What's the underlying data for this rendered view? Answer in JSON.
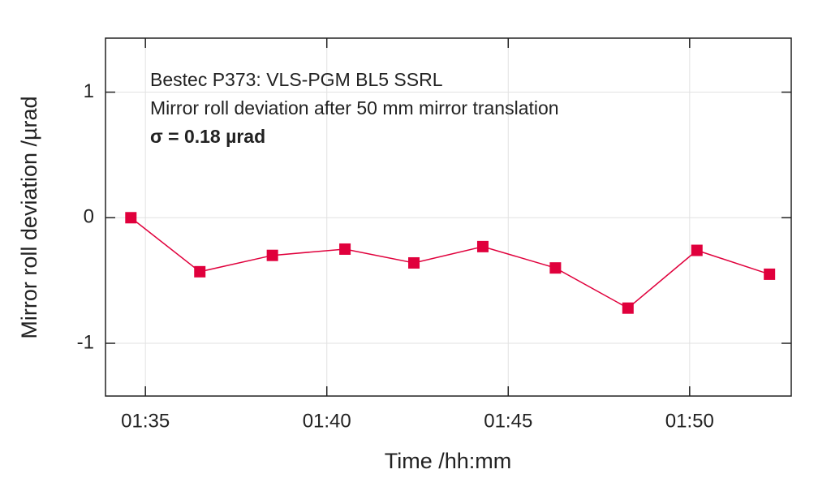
{
  "chart_data": {
    "type": "line",
    "xlabel": "Time /hh:mm",
    "ylabel": "Mirror roll deviation /µrad",
    "annotations": [
      "Bestec P373: VLS-PGM BL5 SSRL",
      "Mirror roll deviation after 50 mm mirror translation",
      "σ = 0.18 µrad"
    ],
    "x": [
      94.6,
      96.5,
      98.5,
      100.5,
      102.4,
      104.3,
      106.3,
      108.3,
      110.2,
      112.2
    ],
    "series": [
      {
        "color": "#e0003c",
        "values": [
          0,
          -0.43,
          -0.3,
          -0.25,
          -0.36,
          -0.23,
          -0.4,
          -0.72,
          -0.26,
          -0.45
        ]
      }
    ],
    "xlim": [
      93.9,
      112.8
    ],
    "xticks": [
      {
        "value": 95,
        "label": "01:35"
      },
      {
        "value": 100,
        "label": "01:40"
      },
      {
        "value": 105,
        "label": "01:45"
      },
      {
        "value": 110,
        "label": "01:50"
      }
    ],
    "ylim": [
      -1.42,
      1.43
    ],
    "yticks": [
      -1,
      0,
      1
    ],
    "grid": true
  }
}
